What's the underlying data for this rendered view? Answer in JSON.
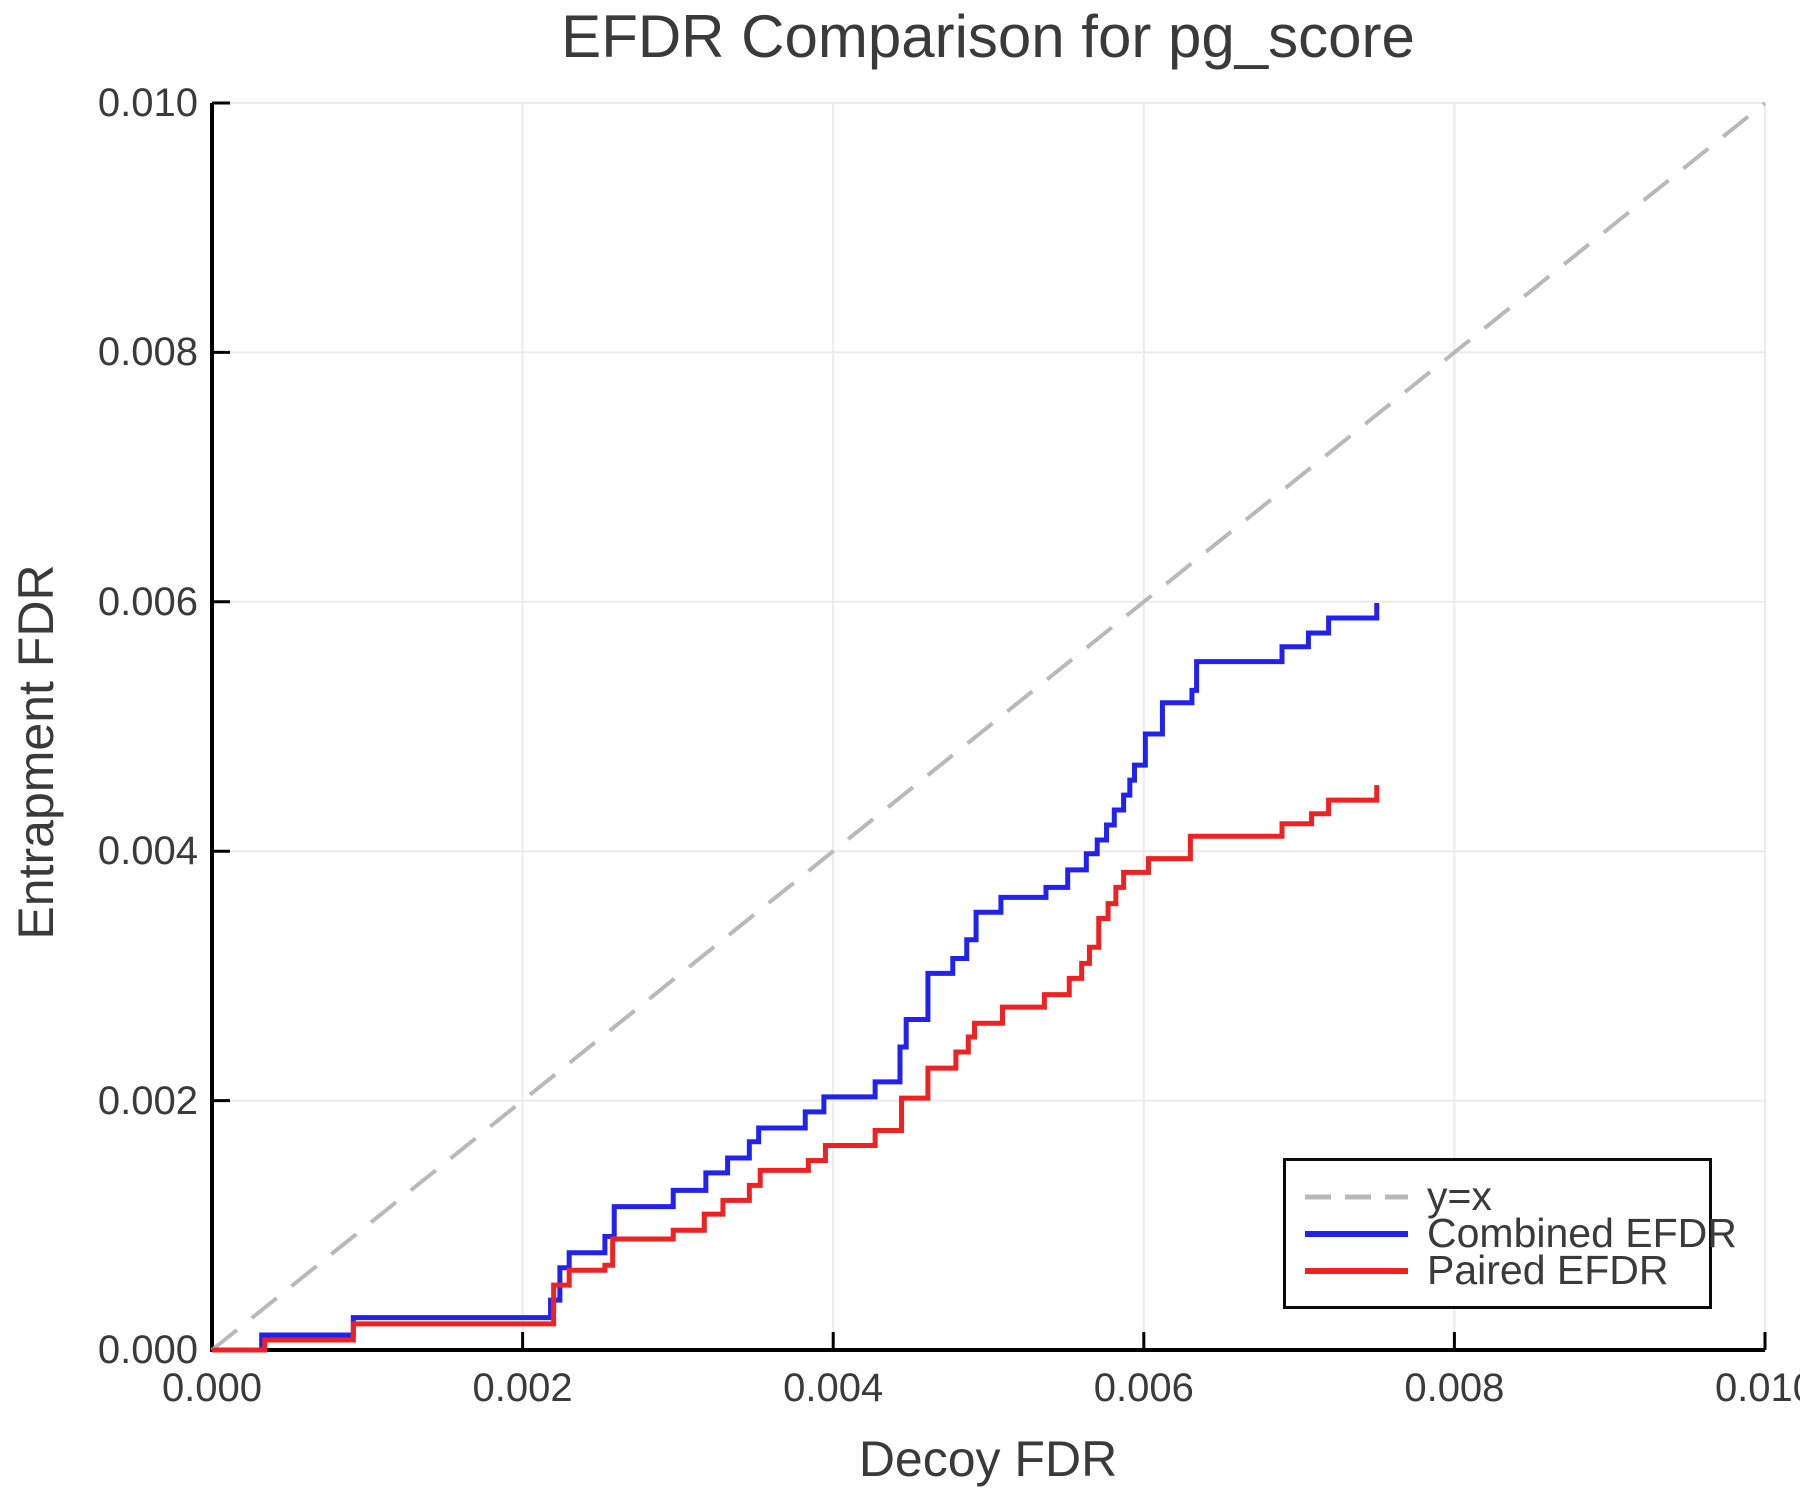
{
  "chart_data": {
    "type": "line",
    "title": "EFDR Comparison for pg_score",
    "xlabel": "Decoy FDR",
    "ylabel": "Entrapment FDR",
    "xlim": [
      0.0,
      0.01
    ],
    "ylim": [
      0.0,
      0.01
    ],
    "grid": true,
    "grid_color": "#ebebeb",
    "axis_color": "#000000",
    "text_color": "#3a3a3a",
    "legend_position": "bottom-right",
    "x_ticks": {
      "values": [
        0.0,
        0.002,
        0.004,
        0.006,
        0.008,
        0.01
      ],
      "labels": [
        "0.000",
        "0.002",
        "0.004",
        "0.006",
        "0.008",
        "0.010"
      ]
    },
    "y_ticks": {
      "values": [
        0.0,
        0.002,
        0.004,
        0.006,
        0.008,
        0.01
      ],
      "labels": [
        "0.000",
        "0.002",
        "0.004",
        "0.006",
        "0.008",
        "0.010"
      ]
    },
    "series": [
      {
        "name": "y=x",
        "type": "line",
        "line_style": "dashed",
        "color": "#b9b9b9",
        "points": [
          [
            0.0,
            0.0
          ],
          [
            0.01,
            0.01
          ]
        ]
      },
      {
        "name": "Combined EFDR",
        "type": "step",
        "line_style": "solid",
        "color": "#2222ee",
        "points": [
          [
            0.0,
            0.0
          ],
          [
            0.00032,
            0.00012
          ],
          [
            0.00091,
            0.00026
          ],
          [
            0.00218,
            0.0004
          ],
          [
            0.00224,
            0.00066
          ],
          [
            0.0023,
            0.00078
          ],
          [
            0.00253,
            0.00091
          ],
          [
            0.00259,
            0.00115
          ],
          [
            0.00297,
            0.00128
          ],
          [
            0.00318,
            0.00142
          ],
          [
            0.00332,
            0.00154
          ],
          [
            0.00346,
            0.00167
          ],
          [
            0.00352,
            0.00178
          ],
          [
            0.00382,
            0.00191
          ],
          [
            0.00394,
            0.00203
          ],
          [
            0.00427,
            0.00215
          ],
          [
            0.00443,
            0.00243
          ],
          [
            0.00447,
            0.00265
          ],
          [
            0.00461,
            0.00302
          ],
          [
            0.00477,
            0.00314
          ],
          [
            0.00486,
            0.00329
          ],
          [
            0.00492,
            0.00351
          ],
          [
            0.00508,
            0.00363
          ],
          [
            0.00537,
            0.00371
          ],
          [
            0.00551,
            0.00385
          ],
          [
            0.00563,
            0.00398
          ],
          [
            0.0057,
            0.00409
          ],
          [
            0.00576,
            0.00421
          ],
          [
            0.00581,
            0.00433
          ],
          [
            0.00587,
            0.00445
          ],
          [
            0.00591,
            0.00457
          ],
          [
            0.00594,
            0.00469
          ],
          [
            0.00601,
            0.00494
          ],
          [
            0.00612,
            0.00519
          ],
          [
            0.00631,
            0.00529
          ],
          [
            0.00634,
            0.00552
          ],
          [
            0.00689,
            0.00564
          ],
          [
            0.00706,
            0.00575
          ],
          [
            0.00719,
            0.00587
          ],
          [
            0.0075,
            0.00599
          ]
        ]
      },
      {
        "name": "Paired EFDR",
        "type": "step",
        "line_style": "solid",
        "color": "#ee2222",
        "points": [
          [
            0.0,
            0.0
          ],
          [
            0.00034,
            8e-05
          ],
          [
            0.00091,
            0.00021
          ],
          [
            0.0022,
            0.00052
          ],
          [
            0.0023,
            0.00064
          ],
          [
            0.00253,
            0.00068
          ],
          [
            0.00258,
            0.00089
          ],
          [
            0.00297,
            0.00096
          ],
          [
            0.00317,
            0.00109
          ],
          [
            0.00329,
            0.0012
          ],
          [
            0.00346,
            0.00132
          ],
          [
            0.00353,
            0.00144
          ],
          [
            0.00384,
            0.00152
          ],
          [
            0.00395,
            0.00164
          ],
          [
            0.00427,
            0.00176
          ],
          [
            0.00444,
            0.00202
          ],
          [
            0.00461,
            0.00226
          ],
          [
            0.00479,
            0.00239
          ],
          [
            0.00487,
            0.00251
          ],
          [
            0.00491,
            0.00262
          ],
          [
            0.00509,
            0.00275
          ],
          [
            0.00536,
            0.00285
          ],
          [
            0.00552,
            0.00298
          ],
          [
            0.0056,
            0.0031
          ],
          [
            0.00565,
            0.00323
          ],
          [
            0.00571,
            0.00346
          ],
          [
            0.00577,
            0.00358
          ],
          [
            0.00582,
            0.00371
          ],
          [
            0.00587,
            0.00383
          ],
          [
            0.00603,
            0.00394
          ],
          [
            0.0063,
            0.00412
          ],
          [
            0.00689,
            0.00422
          ],
          [
            0.00708,
            0.0043
          ],
          [
            0.00719,
            0.00441
          ],
          [
            0.0075,
            0.00453
          ]
        ]
      }
    ]
  }
}
